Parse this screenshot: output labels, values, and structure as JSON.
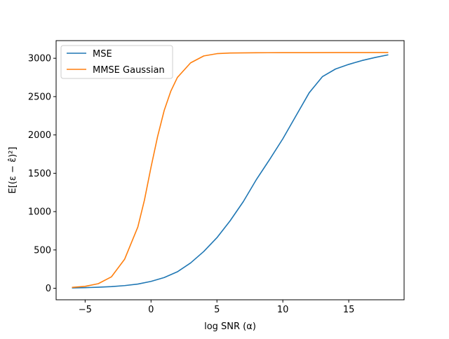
{
  "chart_data": {
    "type": "line",
    "title": "",
    "xlabel": "log SNR (α)",
    "ylabel": "E[(ε − ε̂)²]",
    "xlim": [
      -7.2,
      19.2
    ],
    "ylim": [
      -150,
      3230
    ],
    "xticks": [
      -5,
      0,
      5,
      10,
      15
    ],
    "yticks": [
      0,
      500,
      1000,
      1500,
      2000,
      2500,
      3000
    ],
    "grid": false,
    "legend": "upper-left",
    "series": [
      {
        "name": "MSE",
        "color": "#1f77b4",
        "x": [
          -6,
          -5,
          -4,
          -3,
          -2,
          -1,
          0,
          1,
          2,
          3,
          4,
          5,
          6,
          7,
          8,
          9,
          10,
          11,
          12,
          13,
          14,
          15,
          16,
          17,
          18
        ],
        "y": [
          5,
          8,
          14,
          22,
          35,
          55,
          90,
          140,
          215,
          330,
          480,
          660,
          880,
          1130,
          1420,
          1680,
          1950,
          2250,
          2550,
          2760,
          2860,
          2920,
          2970,
          3010,
          3045
        ]
      },
      {
        "name": "MMSE Gaussian",
        "color": "#ff7f0e",
        "x": [
          -6,
          -5,
          -4,
          -3,
          -2,
          -1,
          -0.5,
          0,
          0.5,
          1,
          1.5,
          2,
          3,
          4,
          5,
          6,
          8,
          10,
          12,
          14,
          16,
          18
        ],
        "y": [
          12,
          25,
          60,
          150,
          380,
          800,
          1150,
          1580,
          1980,
          2320,
          2570,
          2750,
          2940,
          3030,
          3060,
          3068,
          3072,
          3073,
          3073,
          3074,
          3074,
          3075
        ]
      }
    ]
  }
}
